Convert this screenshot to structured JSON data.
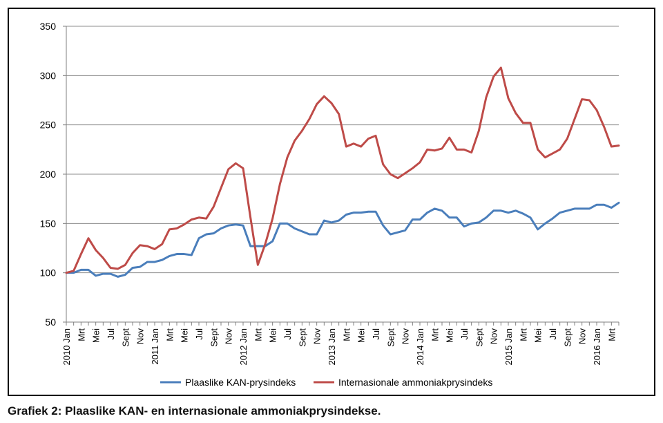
{
  "caption": "Grafiek 2: Plaaslike KAN- en internasionale ammoniakprysindekse.",
  "chart_data": {
    "type": "line",
    "title": "",
    "xlabel": "",
    "ylabel": "",
    "ylim": [
      50,
      350
    ],
    "yticks": [
      50,
      100,
      150,
      200,
      250,
      300,
      350
    ],
    "grid": "horizontal",
    "legend_position": "bottom",
    "x": [
      "2010 Jan",
      "Feb",
      "Mrt",
      "Apr",
      "Mei",
      "Jun",
      "Jul",
      "Aug",
      "Sept",
      "Okt",
      "Nov",
      "Des",
      "2011 Jan",
      "Feb",
      "Mrt",
      "Apr",
      "Mei",
      "Jun",
      "Jul",
      "Aug",
      "Sept",
      "Okt",
      "Nov",
      "Des",
      "2012 Jan",
      "Feb",
      "Mrt",
      "Apr",
      "Mei",
      "Jun",
      "Jul",
      "Aug",
      "Sept",
      "Okt",
      "Nov",
      "Des",
      "2013 Jan",
      "Feb",
      "Mrt",
      "Apr",
      "Mei",
      "Jun",
      "Jul",
      "Aug",
      "Sept",
      "Okt",
      "Nov",
      "Des",
      "2014 Jan",
      "Feb",
      "Mrt",
      "Apr",
      "Mei",
      "Jun",
      "Jul",
      "Aug",
      "Sept",
      "Okt",
      "Nov",
      "Des",
      "2015 Jan",
      "Feb",
      "Mrt",
      "Apr",
      "Mei",
      "Jun",
      "Jul",
      "Aug",
      "Sept",
      "Okt",
      "Nov",
      "Des",
      "2016 Jan",
      "Feb",
      "Mrt",
      "Apr"
    ],
    "x_tick_labels": [
      {
        "index": 0,
        "label": "2010 Jan"
      },
      {
        "index": 2,
        "label": "Mrt"
      },
      {
        "index": 4,
        "label": "Mei"
      },
      {
        "index": 6,
        "label": "Jul"
      },
      {
        "index": 8,
        "label": "Sept"
      },
      {
        "index": 10,
        "label": "Nov"
      },
      {
        "index": 12,
        "label": "2011 Jan"
      },
      {
        "index": 14,
        "label": "Mrt"
      },
      {
        "index": 16,
        "label": "Mei"
      },
      {
        "index": 18,
        "label": "Jul"
      },
      {
        "index": 20,
        "label": "Sept"
      },
      {
        "index": 22,
        "label": "Nov"
      },
      {
        "index": 24,
        "label": "2012 Jan"
      },
      {
        "index": 26,
        "label": "Mrt"
      },
      {
        "index": 28,
        "label": "Mei"
      },
      {
        "index": 30,
        "label": "Jul"
      },
      {
        "index": 32,
        "label": "Sept"
      },
      {
        "index": 34,
        "label": "Nov"
      },
      {
        "index": 36,
        "label": "2013 Jan"
      },
      {
        "index": 38,
        "label": "Mrt"
      },
      {
        "index": 40,
        "label": "Mei"
      },
      {
        "index": 42,
        "label": "Jul"
      },
      {
        "index": 44,
        "label": "Sept"
      },
      {
        "index": 46,
        "label": "Nov"
      },
      {
        "index": 48,
        "label": "2014 Jan"
      },
      {
        "index": 50,
        "label": "Mrt"
      },
      {
        "index": 52,
        "label": "Mei"
      },
      {
        "index": 54,
        "label": "Jul"
      },
      {
        "index": 56,
        "label": "Sept"
      },
      {
        "index": 58,
        "label": "Nov"
      },
      {
        "index": 60,
        "label": "2015 Jan"
      },
      {
        "index": 62,
        "label": "Mrt"
      },
      {
        "index": 64,
        "label": "Mei"
      },
      {
        "index": 66,
        "label": "Jul"
      },
      {
        "index": 68,
        "label": "Sept"
      },
      {
        "index": 70,
        "label": "Nov"
      },
      {
        "index": 72,
        "label": "2016 Jan"
      },
      {
        "index": 74,
        "label": "Mrt"
      }
    ],
    "series": [
      {
        "name": "Plaaslike KAN-prysindeks",
        "color": "#4a7ebb",
        "values": [
          100,
          100,
          103,
          103,
          97,
          99,
          99,
          96,
          98,
          105,
          106,
          111,
          111,
          113,
          117,
          119,
          119,
          118,
          135,
          139,
          140,
          145,
          148,
          149,
          148,
          127,
          127,
          127,
          132,
          150,
          150,
          145,
          142,
          139,
          139,
          153,
          151,
          153,
          159,
          161,
          161,
          162,
          162,
          148,
          139,
          141,
          143,
          154,
          154,
          161,
          165,
          163,
          156,
          156,
          147,
          150,
          151,
          156,
          163,
          163,
          161,
          163,
          160,
          156,
          144,
          150,
          155,
          161,
          163,
          165,
          165,
          165,
          169,
          169,
          166,
          171
        ]
      },
      {
        "name": "Internasionale ammoniakprysindeks",
        "color": "#be4b48",
        "values": [
          100,
          102,
          119,
          135,
          123,
          115,
          105,
          104,
          108,
          120,
          128,
          127,
          124,
          129,
          144,
          145,
          149,
          154,
          156,
          155,
          167,
          186,
          205,
          211,
          206,
          156,
          108,
          129,
          155,
          190,
          217,
          234,
          244,
          256,
          271,
          279,
          272,
          261,
          228,
          231,
          228,
          236,
          239,
          210,
          200,
          196,
          201,
          206,
          212,
          225,
          224,
          226,
          237,
          225,
          225,
          222,
          244,
          278,
          299,
          308,
          277,
          262,
          252,
          252,
          225,
          217,
          221,
          225,
          236,
          256,
          276,
          275,
          265,
          248,
          228,
          229
        ]
      }
    ]
  }
}
